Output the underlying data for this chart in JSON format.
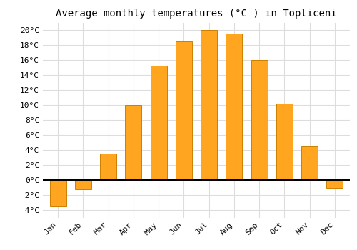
{
  "title": "Average monthly temperatures (°C ) in Topliceni",
  "months": [
    "Jan",
    "Feb",
    "Mar",
    "Apr",
    "May",
    "Jun",
    "Jul",
    "Aug",
    "Sep",
    "Oct",
    "Nov",
    "Dec"
  ],
  "values": [
    -3.5,
    -1.2,
    3.5,
    10.0,
    15.2,
    18.5,
    20.0,
    19.5,
    16.0,
    10.2,
    4.5,
    -1.0
  ],
  "bar_color": "#FFA520",
  "bar_edge_color": "#CC8000",
  "background_color": "#FFFFFF",
  "grid_color": "#DDDDDD",
  "ylim": [
    -5,
    21
  ],
  "yticks": [
    -4,
    -2,
    0,
    2,
    4,
    6,
    8,
    10,
    12,
    14,
    16,
    18,
    20
  ],
  "title_fontsize": 10,
  "tick_fontsize": 8,
  "font_family": "monospace"
}
